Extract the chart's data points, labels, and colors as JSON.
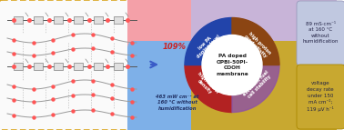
{
  "left_box_edge_color": "#DAA520",
  "arrow_color": "#3A5BC7",
  "center_text": "PA doped\nOPBI-50PI-\nCOOH\nmembrane",
  "top_left_rect_color": "#F4A0A8",
  "top_left_text": "109%",
  "top_left_text_color": "#CC2222",
  "top_left_wedge_color": "#B22222",
  "top_left_wedge_text": "low PA\ndoping level",
  "top_right_rect_color": "#C8B4D8",
  "top_right_wedge_color": "#9055A0",
  "top_right_wedge_text": "high proton\nconductivity",
  "bottom_left_rect_color": "#7EB0E8",
  "bottom_left_text": "463 mW cm⁻² at\n160 °C without\nhumidification",
  "bottom_left_text_color": "#334488",
  "bottom_left_wedge_color": "#2244AA",
  "bottom_left_wedge_text": "high Power\ndensity",
  "bottom_right_rect_color": "#C8A830",
  "bottom_right_wedge_color": "#8B4513",
  "bottom_right_wedge_text": "excellent fuel\ncell stability",
  "top_right_box_color": "#C0C8E0",
  "top_right_box_text": "89 mS·cm⁻¹\nat 160 °C\nwithout\nhumidification",
  "bottom_right_box_color": "#C8A830",
  "bottom_right_box_text": "voltage\ndecay rate\nunder 150\nmA cm⁻²;\n119 μV h⁻¹",
  "bg_color": "#FFFFFF"
}
